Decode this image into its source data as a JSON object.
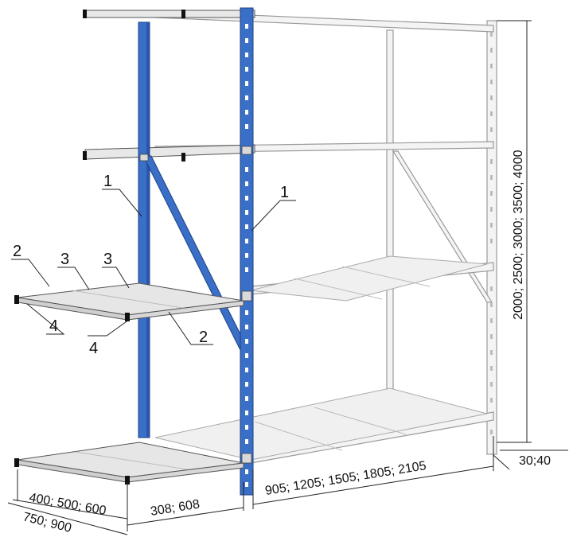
{
  "colors": {
    "upright_blue": "#3a6fc8",
    "upright_blue_dark": "#2a55a8",
    "frame_light": "#f2f2f2",
    "frame_edge": "#9a9a9a",
    "shelf_fill": "#e6e6e6",
    "line": "#222222"
  },
  "callouts": {
    "c1a": "1",
    "c1b": "1",
    "c2a": "2",
    "c2b": "2",
    "c3a": "3",
    "c3b": "3",
    "c4a": "4",
    "c4b": "4"
  },
  "dimensions": {
    "height": "2000; 2500; 3000; 3500; 4000",
    "width": "905; 1205; 1505; 1805; 2105",
    "side_width": "30;40",
    "module": "308; 608",
    "depth_inner": "400; 500; 600",
    "depth_outer": "750; 900"
  }
}
